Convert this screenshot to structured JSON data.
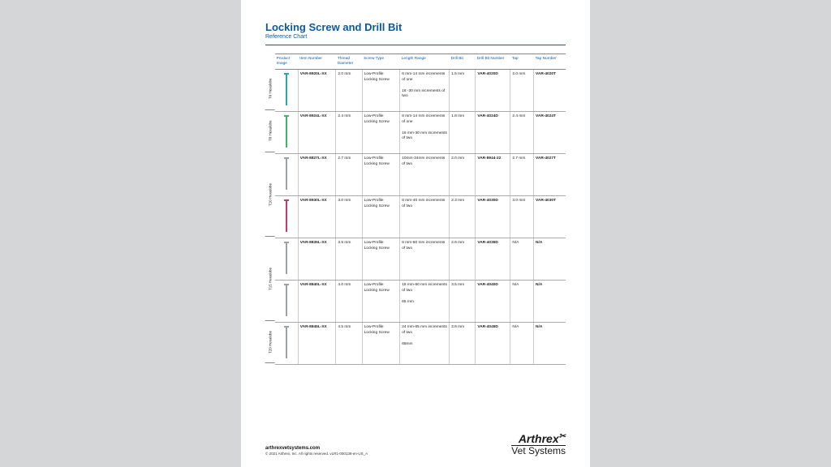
{
  "title": "Locking Screw and Drill Bit",
  "subtitle": "Reference Chart",
  "columns": [
    "Product Image",
    "Item Number",
    "Thread Diameter",
    "Screw Type",
    "Length Range",
    "Drill Bit",
    "Drill Bit Number",
    "Tap",
    "Tap Number"
  ],
  "groups": [
    {
      "label": "T6 Hexalobe",
      "h": 52
    },
    {
      "label": "T8 Hexalobe",
      "h": 52
    },
    {
      "label": "T10 Hexalobe",
      "h": 104
    },
    {
      "label": "T15 Hexalobe",
      "h": 104
    },
    {
      "label": "T20 Hexalobe",
      "h": 52
    }
  ],
  "rows": [
    {
      "screw_color": "#2aa8a8",
      "item": "VAR-8920L-XX",
      "td": "2.0 mm",
      "st": "Low-Profile Locking Screw",
      "lr": "6 mm-14 mm increments of one\n\n16 -30 mm increments of two",
      "db": "1.5 mm",
      "dbn": "VAR-4020D",
      "tap": "2.0 mm",
      "tn": "VAR-4020T"
    },
    {
      "screw_color": "#3eb56a",
      "item": "VAR-8924L-XX",
      "td": "2.4 mm",
      "st": "Low-Profile Locking Screw",
      "lr": "8 mm-14 mm increments of one\n\n16 mm-30 mm increments of two",
      "db": "1.8 mm",
      "dbn": "VAR-4024D",
      "tap": "2.4 mm",
      "tn": "VAR-4024T"
    },
    {
      "screw_color": "#9aa0a6",
      "item": "VAR-8827L-XX",
      "td": "2.7 mm",
      "st": "Low-Profile Locking Screw",
      "lr": "10mm-34mm increments of two",
      "db": "2.0 mm",
      "dbn": "VAR-8944-22",
      "tap": "2.7 mm",
      "tn": "VAR-4027T"
    },
    {
      "screw_color": "#c23a6e",
      "item": "VAR-8930L-XX",
      "td": "3.0 mm",
      "st": "Low-Profile Locking Screw",
      "lr": "8 mm-40 mm increments of two",
      "db": "2.3 mm",
      "dbn": "VAR-4030D",
      "tap": "3.0 mm",
      "tn": "VAR-4030T"
    },
    {
      "screw_color": "#9aa0a6",
      "item": "VAR-8835L-XX",
      "td": "3.5 mm",
      "st": "Low-Profile Locking Screw",
      "lr": "8 mm-60 mm increments of two",
      "db": "2.8 mm",
      "dbn": "VAR-4035D",
      "tap": "N/A",
      "tn": "N/A"
    },
    {
      "screw_color": "#9aa0a6",
      "item": "VAR-8840L-XX",
      "td": "4.0 mm",
      "st": "Low-Profile Locking Screw",
      "lr": "18 mm-60 mm increments of two\n\n65 mm",
      "db": "3.5 mm",
      "dbn": "VAR-4040D",
      "tap": "N/A",
      "tn": "N/A"
    },
    {
      "screw_color": "#9aa0a6",
      "item": "VAR-8845L-XX",
      "td": "4.5 mm",
      "st": "Low-Profile Locking Screw",
      "lr": "24 mm-65 mm increments of two\n\n65mm",
      "db": "3.8 mm",
      "dbn": "VAR-4045D",
      "tap": "N/A",
      "tn": "N/A"
    }
  ],
  "footer": {
    "url": "arthrexvetsystems.com",
    "copy": "© 2021 Arthrex, Inc. All rights reserved. vLR1-000138-en-US_A"
  },
  "logo": {
    "top": "Arthrex",
    "bot": "Vet Systems"
  }
}
